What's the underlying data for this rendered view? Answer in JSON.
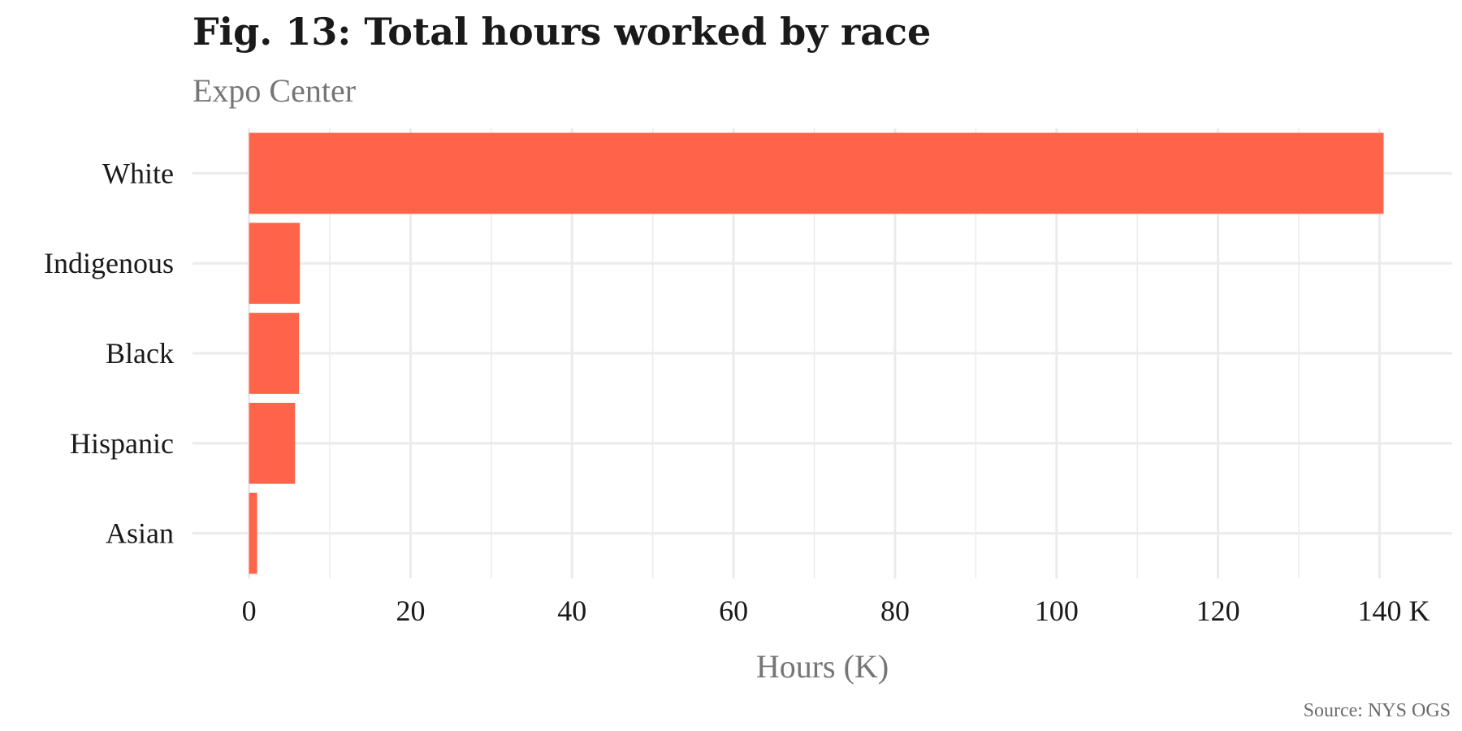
{
  "chart_data": {
    "type": "bar",
    "orientation": "horizontal",
    "title": "Fig. 13: Total hours worked by race",
    "subtitle": "Expo Center",
    "caption": "Source: NYS OGS",
    "xlabel": "Hours (K)",
    "ylabel": "",
    "categories": [
      "White",
      "Indigenous",
      "Black",
      "Hispanic",
      "Asian"
    ],
    "values": [
      140.5,
      6.3,
      6.2,
      5.7,
      1.0
    ],
    "xlim": [
      -7,
      149
    ],
    "x_ticks": [
      0,
      20,
      40,
      60,
      80,
      100,
      120,
      140
    ],
    "x_tick_labels": [
      "0",
      "20",
      "40",
      "60",
      "80",
      "100",
      "120",
      "140 K"
    ],
    "grid": true,
    "bar_color": "#FF6349",
    "grid_color": "#EBEBEB"
  }
}
